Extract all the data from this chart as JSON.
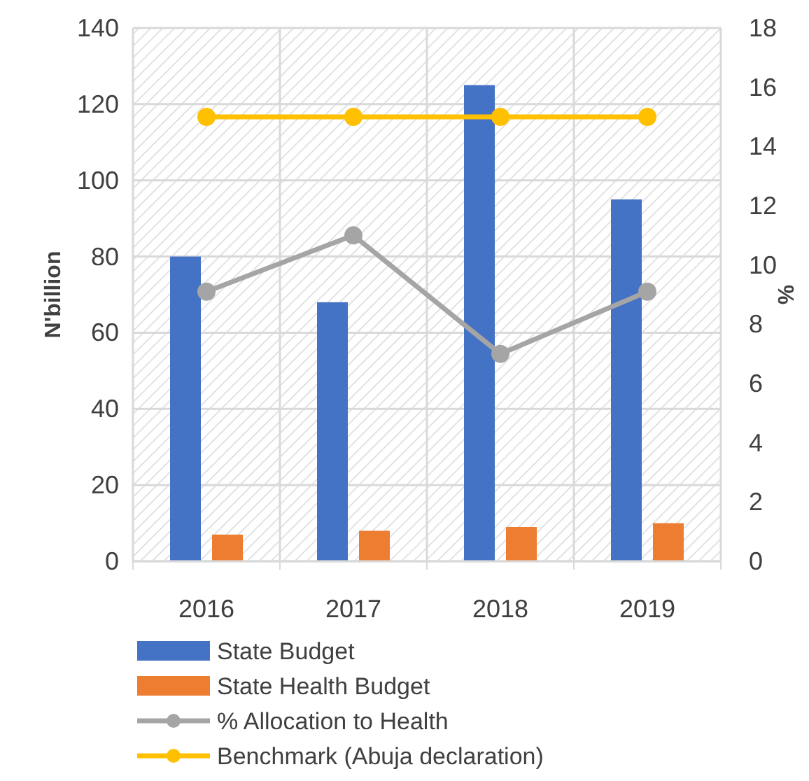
{
  "chart_data": {
    "type": "bar",
    "categories": [
      "2016",
      "2017",
      "2018",
      "2019"
    ],
    "ylabel": "N'billion",
    "y2label": "%",
    "ylim": [
      0,
      140
    ],
    "yticks": [
      0,
      20,
      40,
      60,
      80,
      100,
      120,
      140
    ],
    "y2lim": [
      0,
      18
    ],
    "y2ticks": [
      0,
      2,
      4,
      6,
      8,
      10,
      12,
      14,
      16,
      18
    ],
    "series": [
      {
        "name": "State Budget",
        "color": "#4472c4",
        "values": [
          80,
          68,
          125,
          95
        ]
      },
      {
        "name": "State Health Budget",
        "color": "#ed7d31",
        "values": [
          7,
          8,
          9,
          10
        ]
      },
      {
        "name": "% Allocation to Health",
        "color": "#a5a5a5",
        "type": "line",
        "axis": "y2",
        "marker": "circle",
        "values": [
          9.1,
          11,
          7,
          9.1
        ]
      },
      {
        "name": "Benchmark (Abuja declaration)",
        "color": "#ffc000",
        "type": "line",
        "axis": "y2",
        "marker": "circle",
        "values": [
          15,
          15,
          15,
          15
        ]
      }
    ],
    "grid": true,
    "legend": "bottom"
  }
}
